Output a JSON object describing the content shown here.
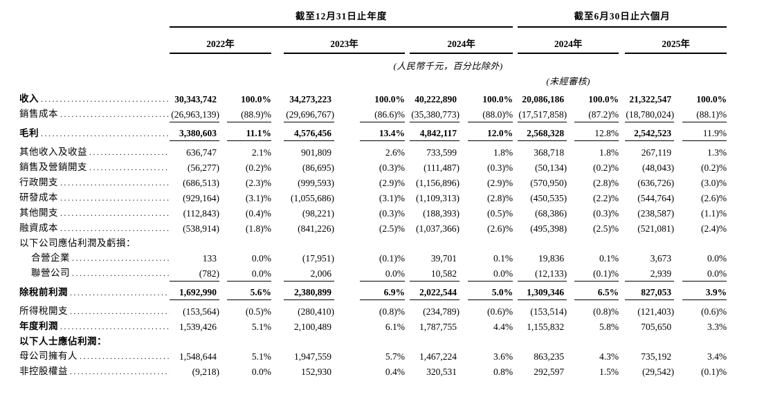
{
  "header": {
    "annual_title": "截至12月31日止年度",
    "interim_title": "截至6月30日止六個月",
    "years": [
      "2022年",
      "2023年",
      "2024年",
      "2024年",
      "2025年"
    ],
    "unit_note": "(人民幣千元，百分比除外)",
    "unaudited_note": "(未經審核)"
  },
  "table": {
    "rows": [
      {
        "label": "收入",
        "dots": true,
        "indent": false,
        "bold_label": true,
        "bold_values": true,
        "rule": false,
        "values": [
          "30,343,742",
          "100.0%",
          "34,273,223",
          "100.0%",
          "40,222,890",
          "100.0%",
          "20,086,186",
          "100.0%",
          "21,322,547",
          "100.0%"
        ]
      },
      {
        "label": "銷售成本",
        "dots": true,
        "indent": false,
        "bold_label": false,
        "bold_values": false,
        "rule": true,
        "values": [
          "(26,963,139)",
          "(88.9)%",
          "(29,696,767)",
          "(86.6)%",
          "(35,380,773)",
          "(88.0)%",
          "(17,517,858)",
          "(87.2)%",
          "(18,780,024)",
          "(88.1)%"
        ]
      },
      {
        "label": "毛利",
        "dots": true,
        "indent": false,
        "bold_label": true,
        "bold_values": [
          0,
          1,
          2,
          3,
          4,
          5,
          6,
          8
        ],
        "rule": true,
        "values": [
          "3,380,603",
          "11.1%",
          "4,576,456",
          "13.4%",
          "4,842,117",
          "12.0%",
          "2,568,328",
          "12.8%",
          "2,542,523",
          "11.9%"
        ]
      },
      {
        "label": "其他收入及收益",
        "dots": true,
        "indent": false,
        "bold_label": false,
        "bold_values": false,
        "rule": false,
        "values": [
          "636,747",
          "2.1%",
          "901,809",
          "2.6%",
          "733,599",
          "1.8%",
          "368,718",
          "1.8%",
          "267,119",
          "1.3%"
        ]
      },
      {
        "label": "銷售及營銷開支",
        "dots": true,
        "indent": false,
        "bold_label": false,
        "bold_values": false,
        "rule": false,
        "values": [
          "(56,277)",
          "(0.2)%",
          "(86,695)",
          "(0.3)%",
          "(111,487)",
          "(0.3)%",
          "(50,134)",
          "(0.2)%",
          "(48,043)",
          "(0.2)%"
        ]
      },
      {
        "label": "行政開支",
        "dots": true,
        "indent": false,
        "bold_label": false,
        "bold_values": false,
        "rule": false,
        "values": [
          "(686,513)",
          "(2.3)%",
          "(999,593)",
          "(2.9)%",
          "(1,156,896)",
          "(2.9)%",
          "(570,950)",
          "(2.8)%",
          "(636,726)",
          "(3.0)%"
        ]
      },
      {
        "label": "研發成本",
        "dots": true,
        "indent": false,
        "bold_label": false,
        "bold_values": false,
        "rule": false,
        "values": [
          "(929,164)",
          "(3.1)%",
          "(1,055,686)",
          "(3.1)%",
          "(1,109,313)",
          "(2.8)%",
          "(450,535)",
          "(2.2)%",
          "(544,764)",
          "(2.6)%"
        ]
      },
      {
        "label": "其他開支",
        "dots": true,
        "indent": false,
        "bold_label": false,
        "bold_values": false,
        "rule": false,
        "values": [
          "(112,843)",
          "(0.4)%",
          "(98,221)",
          "(0.3)%",
          "(188,393)",
          "(0.5)%",
          "(68,386)",
          "(0.3)%",
          "(238,587)",
          "(1.1)%"
        ]
      },
      {
        "label": "融資成本",
        "dots": true,
        "indent": false,
        "bold_label": false,
        "bold_values": false,
        "rule": false,
        "values": [
          "(538,914)",
          "(1.8)%",
          "(841,226)",
          "(2.5)%",
          "(1,037,366)",
          "(2.6)%",
          "(495,398)",
          "(2.5)%",
          "(521,081)",
          "(2.4)%"
        ]
      },
      {
        "label": "以下公司應佔利潤及虧損：",
        "dots": false,
        "indent": false,
        "bold_label": false,
        "bold_values": false,
        "rule": false,
        "values": null
      },
      {
        "label": "合營企業",
        "dots": true,
        "indent": true,
        "bold_label": false,
        "bold_values": false,
        "rule": false,
        "values": [
          "133",
          "0.0%",
          "(17,951)",
          "(0.1)%",
          "39,701",
          "0.1%",
          "19,836",
          "0.1%",
          "3,673",
          "0.0%"
        ]
      },
      {
        "label": "聯營公司",
        "dots": true,
        "indent": true,
        "bold_label": false,
        "bold_values": false,
        "rule": true,
        "values": [
          "(782)",
          "0.0%",
          "2,006",
          "0.0%",
          "10,582",
          "0.0%",
          "(12,133)",
          "(0.1)%",
          "2,939",
          "0.0%"
        ]
      },
      {
        "label": "除稅前利潤",
        "dots": true,
        "indent": false,
        "bold_label": true,
        "bold_values": true,
        "rule": true,
        "values": [
          "1,692,990",
          "5.6%",
          "2,380,899",
          "6.9%",
          "2,022,544",
          "5.0%",
          "1,309,346",
          "6.5%",
          "827,053",
          "3.9%"
        ]
      },
      {
        "label": "所得稅開支",
        "dots": true,
        "indent": false,
        "bold_label": false,
        "bold_values": false,
        "rule": false,
        "values": [
          "(153,564)",
          "(0.5)%",
          "(280,410)",
          "(0.8)%",
          "(234,789)",
          "(0.6)%",
          "(153,514)",
          "(0.8)%",
          "(121,403)",
          "(0.6)%"
        ]
      },
      {
        "label": "年度利潤",
        "dots": true,
        "indent": false,
        "bold_label": true,
        "bold_values": false,
        "rule": false,
        "values": [
          "1,539,426",
          "5.1%",
          "2,100,489",
          "6.1%",
          "1,787,755",
          "4.4%",
          "1,155,832",
          "5.8%",
          "705,650",
          "3.3%"
        ]
      },
      {
        "label": "以下人士應佔利潤：",
        "dots": false,
        "indent": false,
        "bold_label": true,
        "bold_values": false,
        "rule": false,
        "values": null
      },
      {
        "label": "母公司擁有人",
        "dots": true,
        "indent": false,
        "bold_label": false,
        "bold_values": false,
        "rule": false,
        "values": [
          "1,548,644",
          "5.1%",
          "1,947,559",
          "5.7%",
          "1,467,224",
          "3.6%",
          "863,235",
          "4.3%",
          "735,192",
          "3.4%"
        ]
      },
      {
        "label": "非控股權益",
        "dots": true,
        "indent": false,
        "bold_label": false,
        "bold_values": false,
        "rule": false,
        "values": [
          "(9,218)",
          "0.0%",
          "152,930",
          "0.4%",
          "320,531",
          "0.8%",
          "292,597",
          "1.5%",
          "(29,542)",
          "(0.1)%"
        ]
      }
    ]
  }
}
